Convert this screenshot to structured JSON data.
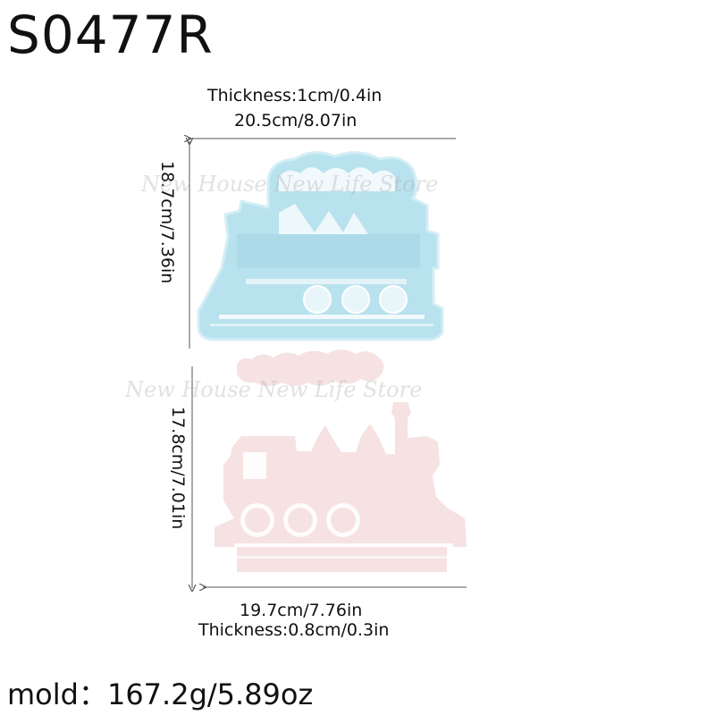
{
  "product_code": "S0477R",
  "mold": {
    "thickness": "Thickness:1cm/0.4in",
    "width": "20.5cm/8.07in",
    "height": "18.7cm/7.36in",
    "color": "#b8e2ee"
  },
  "casting": {
    "height": "17.8cm/7.01in",
    "width": "19.7cm/7.76in",
    "thickness": "Thickness:0.8cm/0.3in",
    "color": "#f6e2e2"
  },
  "mold_weight": "mold：167.2g/5.89oz",
  "watermark": "New House New Life Store"
}
